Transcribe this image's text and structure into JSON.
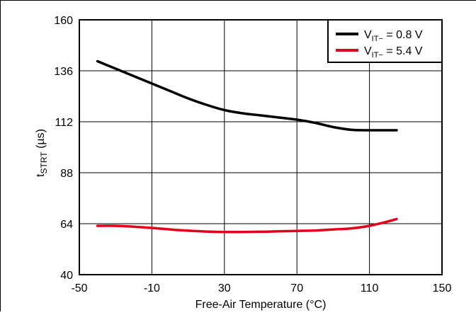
{
  "chart_data": {
    "type": "line",
    "title": "",
    "xlabel": "Free-Air Temperature (°C)",
    "ylabel_main": "t",
    "ylabel_sub": "STRT",
    "ylabel_unit": " (µs)",
    "xlim": [
      -50,
      150
    ],
    "ylim": [
      40,
      160
    ],
    "xticks": [
      -50,
      -10,
      30,
      70,
      110,
      150
    ],
    "yticks": [
      40,
      64,
      88,
      112,
      136,
      160
    ],
    "xtick_labels": [
      "-50",
      "-10",
      "30",
      "70",
      "110",
      "150"
    ],
    "ytick_labels": [
      "40",
      "64",
      "88",
      "112",
      "136",
      "160"
    ],
    "grid": true,
    "legend_position": "top-right",
    "series": [
      {
        "legend_pre": "V",
        "legend_sub": "IT−",
        "legend_post": " = 0.8 V",
        "color": "#000000",
        "x": [
          -40,
          -30,
          -20,
          -10,
          0,
          10,
          20,
          30,
          40,
          50,
          60,
          70,
          80,
          90,
          100,
          110,
          120,
          125
        ],
        "y": [
          140.5,
          137,
          133.5,
          130,
          126.5,
          123,
          120,
          117.5,
          116,
          115,
          114,
          113,
          111.5,
          109.5,
          108.2,
          108,
          108,
          108
        ]
      },
      {
        "legend_pre": "V",
        "legend_sub": "IT−",
        "legend_post": " = 5.4 V",
        "color": "#e3001b",
        "x": [
          -40,
          -30,
          -20,
          -10,
          0,
          10,
          20,
          30,
          40,
          50,
          60,
          70,
          80,
          90,
          100,
          110,
          120,
          125
        ],
        "y": [
          63,
          63,
          62.6,
          62,
          61.3,
          60.7,
          60.3,
          60.1,
          60.1,
          60.2,
          60.4,
          60.6,
          60.8,
          61.3,
          61.8,
          63,
          65,
          66.2
        ]
      }
    ]
  }
}
